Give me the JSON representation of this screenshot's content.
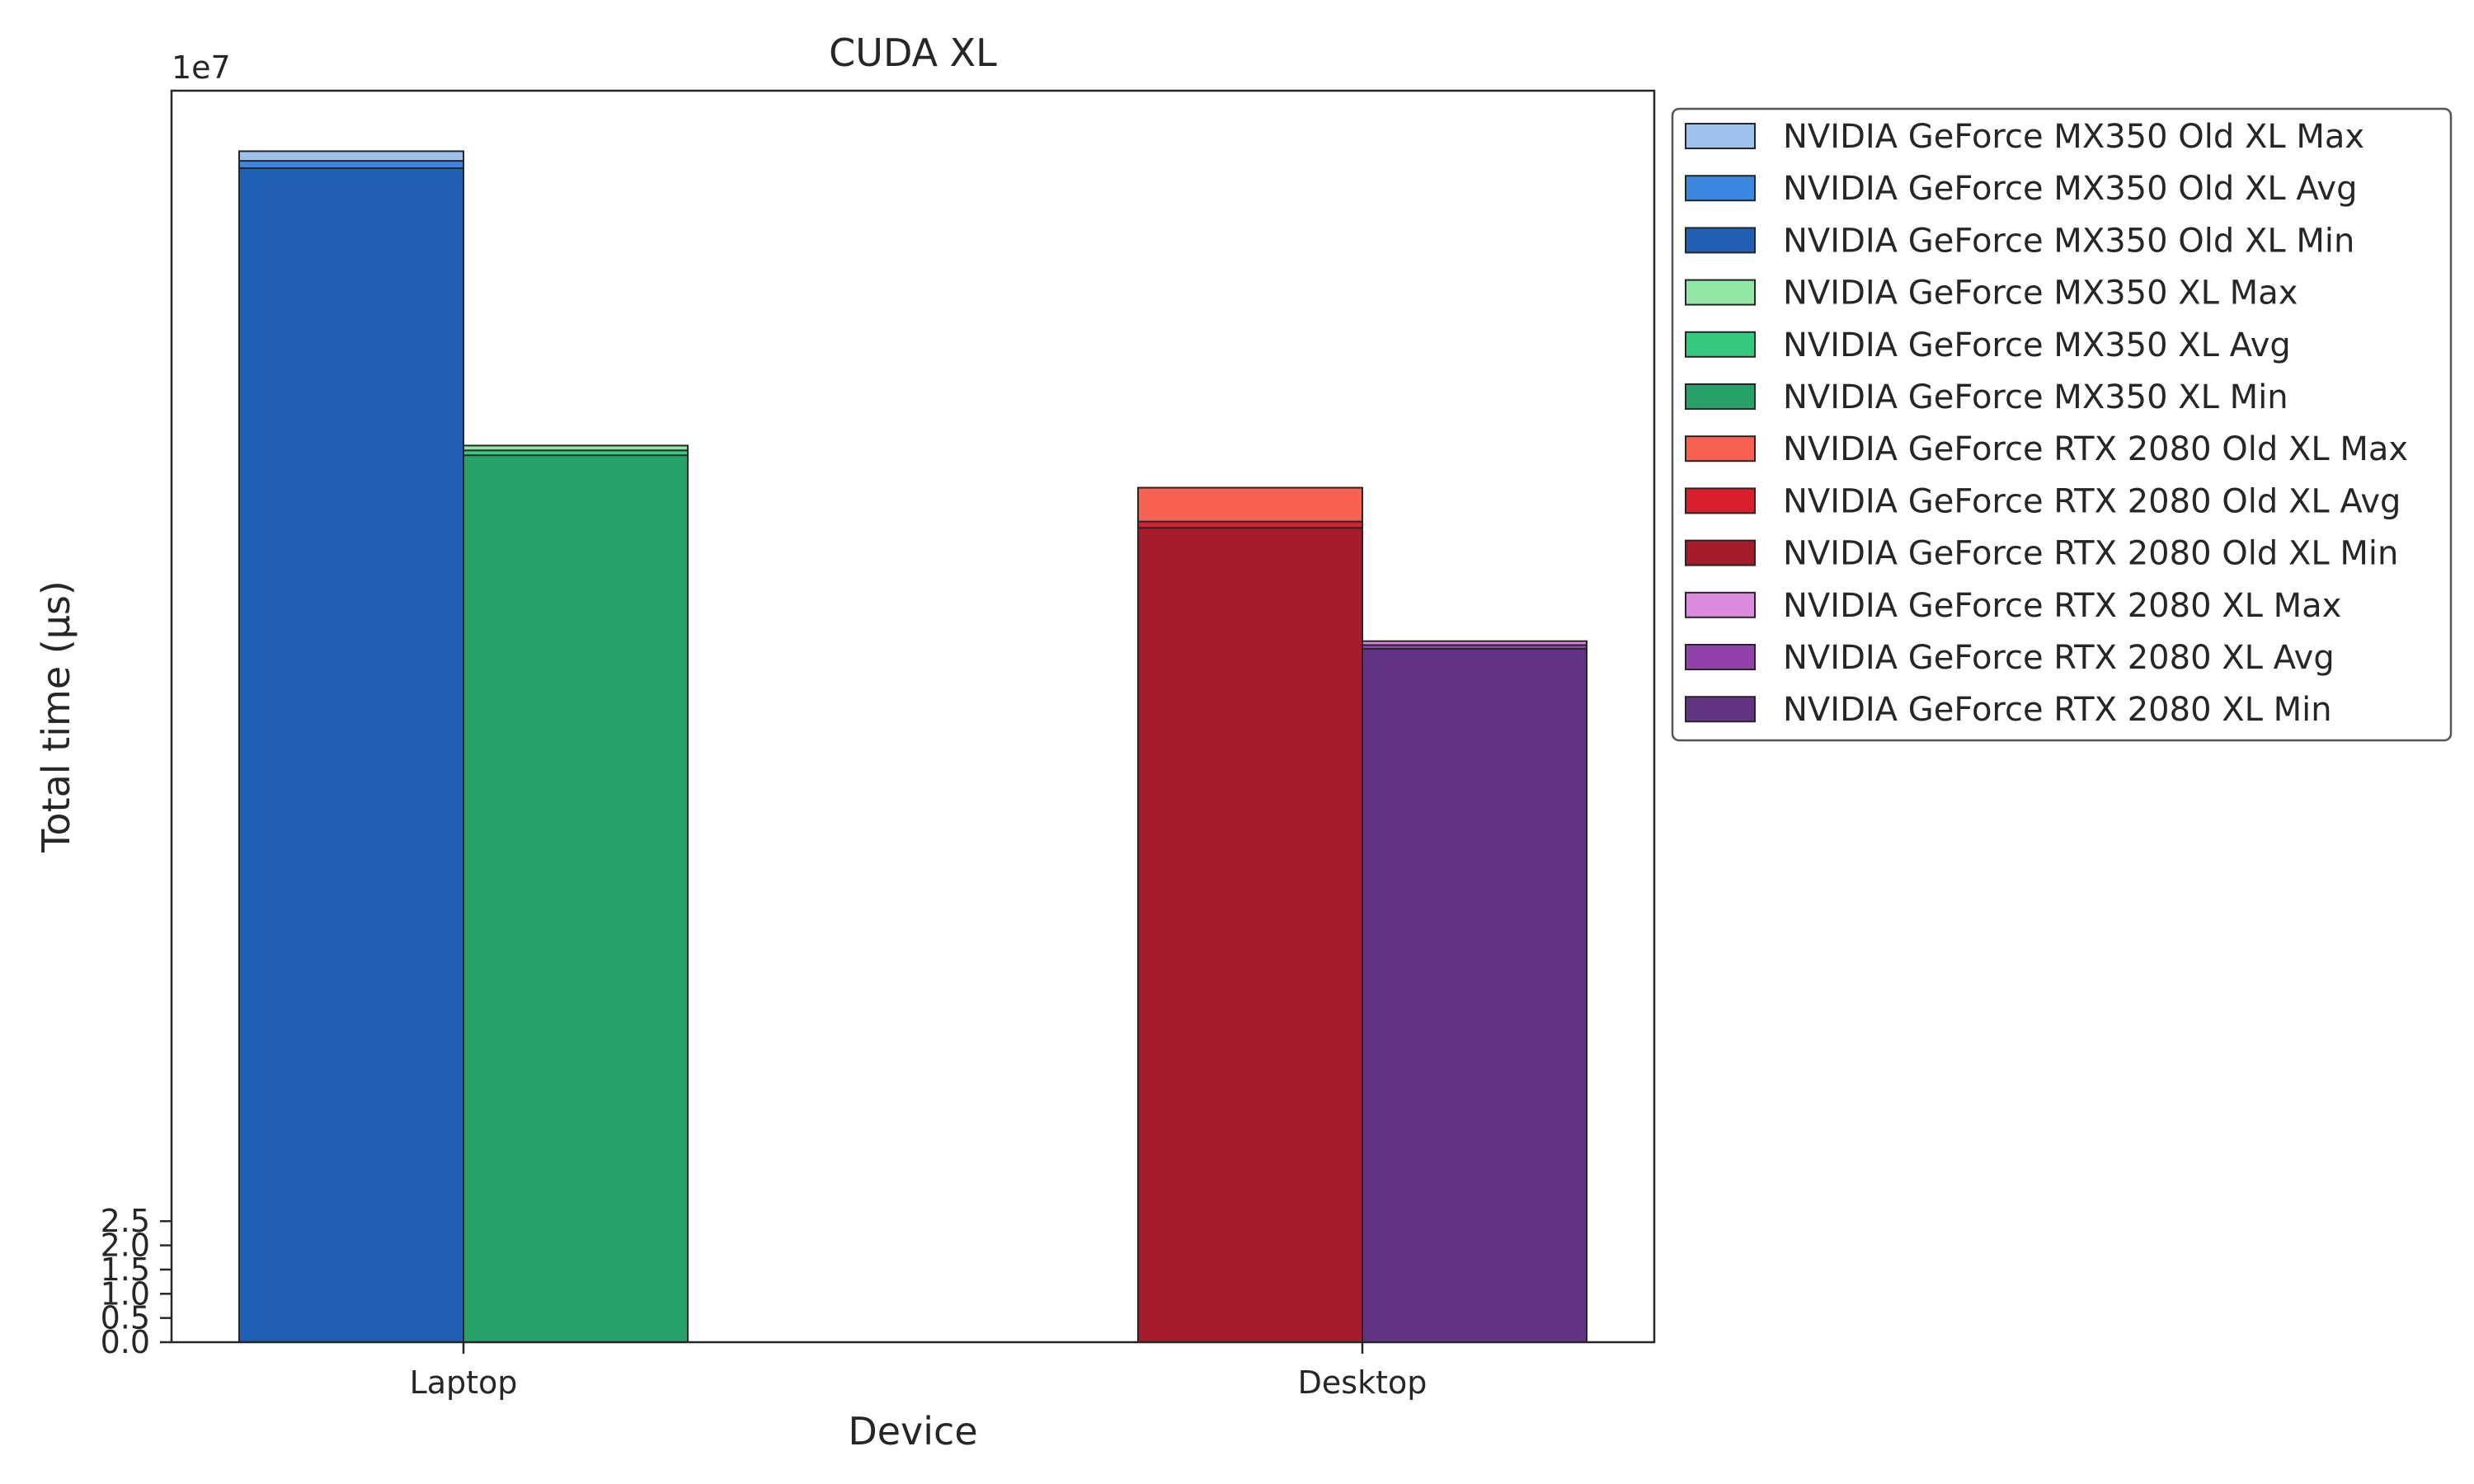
{
  "chart_data": {
    "type": "bar",
    "stacked_overlay": true,
    "title": "CUDA XL",
    "xlabel": "Device",
    "ylabel": "Total time (µs)",
    "y_offset_label": "1e7",
    "y_scale": 10000000,
    "ylim": [
      0,
      25.85
    ],
    "yticks": [
      0.0,
      0.5,
      1.0,
      1.5,
      2.0,
      2.5
    ],
    "ytick_labels": [
      "0.0",
      "0.5",
      "1.0",
      "1.5",
      "2.0",
      "2.5"
    ],
    "categories": [
      "Laptop",
      "Desktop"
    ],
    "grid": false,
    "legend_position": "outside right, top",
    "groups": [
      {
        "category": "Laptop",
        "bars": [
          {
            "name": "NVIDIA GeForce MX350 Old XL",
            "max": 24.6,
            "avg": 24.4,
            "min": 24.25,
            "colors": {
              "max": "#9ec2ec",
              "avg": "#3b86e0",
              "min": "#1f5fb4"
            }
          },
          {
            "name": "NVIDIA GeForce MX350 XL",
            "max": 18.52,
            "avg": 18.42,
            "min": 18.32,
            "colors": {
              "max": "#8ee8a4",
              "avg": "#34c97e",
              "min": "#26a269"
            }
          }
        ]
      },
      {
        "category": "Desktop",
        "bars": [
          {
            "name": "NVIDIA GeForce RTX 2080 Old XL",
            "max": 17.65,
            "avg": 16.95,
            "min": 16.82,
            "colors": {
              "max": "#f66151",
              "avg": "#d91f2b",
              "min": "#a51d2d"
            }
          },
          {
            "name": "NVIDIA GeForce RTX 2080 XL",
            "max": 14.48,
            "avg": 14.4,
            "min": 14.32,
            "colors": {
              "max": "#dc8add",
              "avg": "#9141ac",
              "min": "#613583"
            }
          }
        ]
      }
    ],
    "legend": [
      {
        "label": "NVIDIA GeForce MX350 Old XL Max",
        "color": "#9ec2ec"
      },
      {
        "label": "NVIDIA GeForce MX350 Old XL Avg",
        "color": "#3b86e0"
      },
      {
        "label": "NVIDIA GeForce MX350 Old XL Min",
        "color": "#1f5fb4"
      },
      {
        "label": "NVIDIA GeForce MX350 XL Max",
        "color": "#8ee8a4"
      },
      {
        "label": "NVIDIA GeForce MX350 XL Avg",
        "color": "#34c97e"
      },
      {
        "label": "NVIDIA GeForce MX350 XL Min",
        "color": "#26a269"
      },
      {
        "label": "NVIDIA GeForce RTX 2080 Old XL Max",
        "color": "#f66151"
      },
      {
        "label": "NVIDIA GeForce RTX 2080 Old XL Avg",
        "color": "#d91f2b"
      },
      {
        "label": "NVIDIA GeForce RTX 2080 Old XL Min",
        "color": "#a51d2d"
      },
      {
        "label": "NVIDIA GeForce RTX 2080 XL Max",
        "color": "#dc8add"
      },
      {
        "label": "NVIDIA GeForce RTX 2080 XL Avg",
        "color": "#9141ac"
      },
      {
        "label": "NVIDIA GeForce RTX 2080 XL Min",
        "color": "#613583"
      }
    ]
  }
}
